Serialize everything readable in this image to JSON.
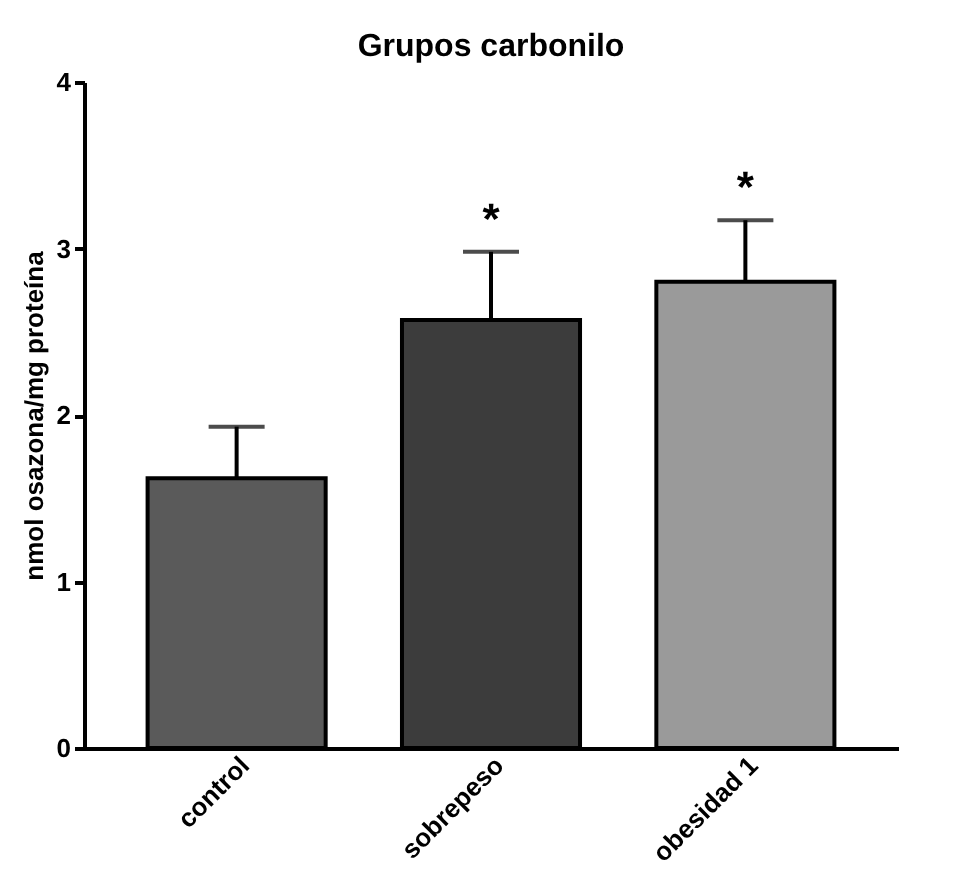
{
  "chart_data": {
    "type": "bar",
    "title": "Grupos carbonilo",
    "ylabel": "nmol osazona/mg proteína",
    "categories": [
      "control",
      "sobrepeso",
      "obesidad 1"
    ],
    "values": [
      1.62,
      2.57,
      2.8
    ],
    "colors": [
      "#5a5a5a",
      "#3c3c3c",
      "#9a9a9a"
    ],
    "errors": [
      [
        1.62,
        1.93
      ],
      [
        2.57,
        2.98
      ],
      [
        2.8,
        3.17
      ]
    ],
    "annotations": [
      {
        "text": "*",
        "x": "sobrepeso",
        "y": 2.98
      },
      {
        "text": "*",
        "x": "obesidad 1",
        "y": 3.17
      }
    ],
    "ylim": [
      0,
      4
    ],
    "yticks": [
      0,
      1,
      2,
      3,
      4
    ],
    "grid": false
  }
}
